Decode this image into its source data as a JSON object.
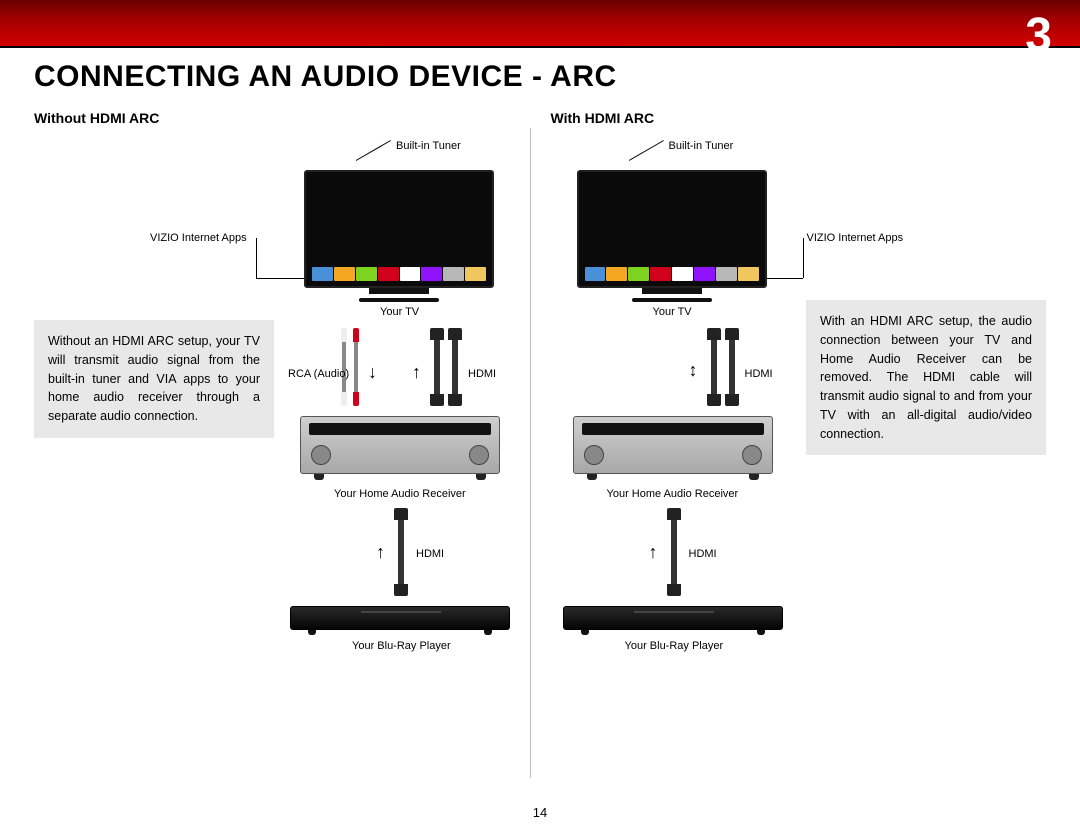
{
  "page_number": "3",
  "footer_page": "14",
  "title": "CONNECTING AN AUDIO DEVICE - ARC",
  "left": {
    "heading": "Without HDMI ARC",
    "description": "Without an HDMI ARC setup, your TV will transmit audio signal from the built-in tuner and VIA apps to your home audio receiver through a separate audio connection.",
    "labels": {
      "tuner": "Built-in Tuner",
      "apps": "VIZIO Internet Apps",
      "tv": "Your TV",
      "rca": "RCA (Audio)",
      "hdmi1": "HDMI",
      "receiver": "Your Home Audio Receiver",
      "hdmi2": "HDMI",
      "bluray": "Your Blu-Ray Player"
    }
  },
  "right": {
    "heading": "With HDMI ARC",
    "description": "With an HDMI ARC setup, the audio connection between your TV and Home Audio Receiver can be removed. The HDMI cable will transmit audio signal to and from your TV with an all-digital audio/video connection.",
    "labels": {
      "tuner": "Built-in Tuner",
      "apps": "VIZIO Internet Apps",
      "tv": "Your TV",
      "hdmi1": "HDMI",
      "receiver": "Your Home Audio Receiver",
      "hdmi2": "HDMI",
      "bluray": "Your Blu-Ray Player"
    }
  },
  "app_colors": [
    "#4a90d9",
    "#f5a623",
    "#7ed321",
    "#d0021b",
    "#ffffff",
    "#9013fe",
    "#b8b8b8",
    "#efc75e"
  ],
  "rca_colors": {
    "red": "#d0021b",
    "white": "#eeeeee"
  },
  "arrows": {
    "down": "↓",
    "up": "↑",
    "updown": "↕"
  }
}
